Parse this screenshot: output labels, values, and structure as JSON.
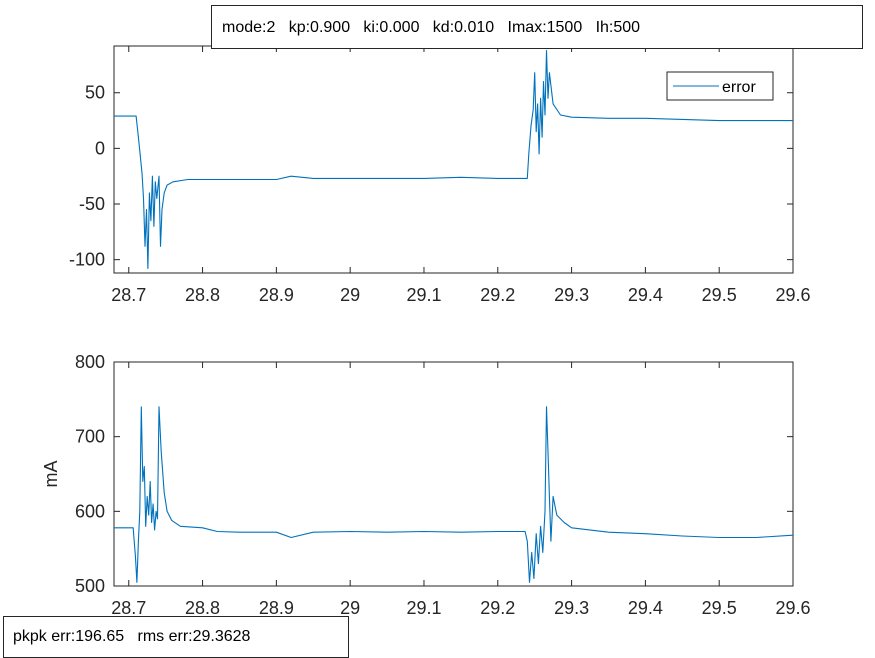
{
  "annotations": {
    "params": "mode:2   kp:0.900   ki:0.000   kd:0.010   Imax:1500   Ih:500",
    "stats": "pkpk err:196.65   rms err:29.3628"
  },
  "colors": {
    "series": "#0072BD",
    "axes": "#262626"
  },
  "chart_data": [
    {
      "type": "line",
      "title": "",
      "xlabel": "",
      "ylabel": "",
      "xlim": [
        28.68,
        29.6
      ],
      "ylim": [
        -112,
        92
      ],
      "xticks": [
        "28.7",
        "28.8",
        "28.9",
        "29",
        "29.1",
        "29.2",
        "29.3",
        "29.4",
        "29.5",
        "29.6"
      ],
      "xtick_values": [
        28.7,
        28.8,
        28.9,
        29.0,
        29.1,
        29.2,
        29.3,
        29.4,
        29.5,
        29.6
      ],
      "yticks": [
        "-100",
        "-50",
        "0",
        "50"
      ],
      "ytick_values": [
        -100,
        -50,
        0,
        50
      ],
      "legend": {
        "entries": [
          "error"
        ],
        "location": "top-right"
      },
      "series": [
        {
          "name": "error",
          "x": [
            28.68,
            28.71,
            28.713,
            28.718,
            28.72,
            28.722,
            28.724,
            28.726,
            28.728,
            28.73,
            28.732,
            28.734,
            28.736,
            28.738,
            28.741,
            28.743,
            28.745,
            28.748,
            28.752,
            28.76,
            28.78,
            28.8,
            28.85,
            28.9,
            28.92,
            28.95,
            29.0,
            29.05,
            29.1,
            29.15,
            29.2,
            29.24,
            29.242,
            29.245,
            29.248,
            29.25,
            29.252,
            29.254,
            29.256,
            29.258,
            29.26,
            29.262,
            29.264,
            29.266,
            29.268,
            29.27,
            29.275,
            29.285,
            29.3,
            29.35,
            29.4,
            29.45,
            29.5,
            29.55,
            29.6
          ],
          "y": [
            29,
            29,
            10,
            -22,
            -45,
            -88,
            -55,
            -108,
            -40,
            -65,
            -25,
            -70,
            -30,
            -45,
            -25,
            -88,
            -55,
            -40,
            -33,
            -30,
            -28,
            -28,
            -28,
            -28,
            -25,
            -27,
            -27,
            -27,
            -27,
            -26,
            -27,
            -27,
            -5,
            20,
            35,
            68,
            15,
            40,
            -5,
            45,
            10,
            60,
            30,
            88,
            45,
            68,
            40,
            30,
            28,
            27,
            27,
            26,
            25,
            25,
            25
          ]
        }
      ]
    },
    {
      "type": "line",
      "title": "",
      "xlabel": "",
      "ylabel": "mA",
      "xlim": [
        28.68,
        29.6
      ],
      "ylim": [
        500,
        800
      ],
      "xticks": [
        "28.7",
        "28.8",
        "28.9",
        "29",
        "29.1",
        "29.2",
        "29.3",
        "29.4",
        "29.5",
        "29.6"
      ],
      "xtick_values": [
        28.7,
        28.8,
        28.9,
        29.0,
        29.1,
        29.2,
        29.3,
        29.4,
        29.5,
        29.6
      ],
      "yticks": [
        "500",
        "600",
        "700",
        "800"
      ],
      "ytick_values": [
        500,
        600,
        700,
        800
      ],
      "series": [
        {
          "x": [
            28.68,
            28.706,
            28.707,
            28.709,
            28.711,
            28.713,
            28.715,
            28.717,
            28.719,
            28.721,
            28.723,
            28.725,
            28.727,
            28.729,
            28.731,
            28.733,
            28.735,
            28.737,
            28.739,
            28.741,
            28.744,
            28.748,
            28.752,
            28.758,
            28.77,
            28.8,
            28.82,
            28.85,
            28.9,
            28.92,
            28.95,
            29.0,
            29.05,
            29.1,
            29.15,
            29.2,
            29.23,
            29.237,
            29.24,
            29.243,
            29.246,
            29.249,
            29.252,
            29.255,
            29.258,
            29.261,
            29.264,
            29.266,
            29.268,
            29.27,
            29.272,
            29.275,
            29.28,
            29.29,
            29.3,
            29.35,
            29.4,
            29.45,
            29.5,
            29.55,
            29.6
          ],
          "y": [
            578,
            578,
            565,
            540,
            505,
            560,
            600,
            740,
            640,
            660,
            580,
            620,
            595,
            640,
            585,
            610,
            575,
            600,
            590,
            740,
            680,
            625,
            600,
            588,
            580,
            578,
            573,
            572,
            572,
            565,
            572,
            573,
            572,
            573,
            572,
            573,
            573,
            573,
            560,
            505,
            545,
            510,
            570,
            530,
            580,
            545,
            600,
            740,
            680,
            620,
            560,
            620,
            595,
            585,
            578,
            572,
            570,
            567,
            565,
            565,
            568
          ]
        }
      ]
    }
  ]
}
